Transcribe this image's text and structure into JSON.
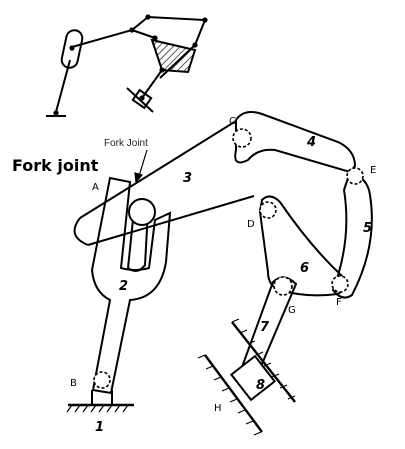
{
  "heading": "Fork joint",
  "callout": "Fork Joint",
  "joints": {
    "A": "A",
    "B": "B",
    "C": "C",
    "D": "D",
    "E": "E",
    "F": "F",
    "G": "G",
    "H": "H"
  },
  "links": {
    "l1": "1",
    "l2": "2",
    "l3": "3",
    "l4": "4",
    "l5": "5",
    "l6": "6",
    "l7": "7",
    "l8": "8"
  },
  "colors": {
    "ink": "#000000",
    "paper": "#ffffff"
  }
}
